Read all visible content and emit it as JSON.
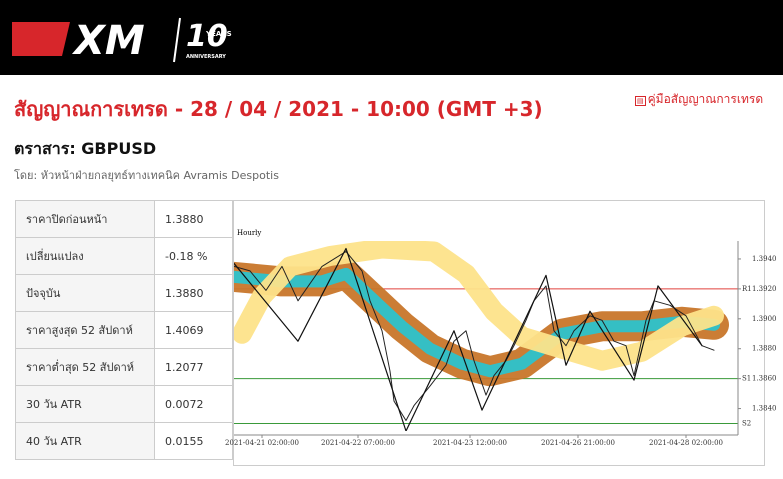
{
  "header": {
    "brand": "XM",
    "years": "10",
    "years_word": "YEARS",
    "anniversary": "ANNIVERSARY"
  },
  "page": {
    "title": "สัญญาณการเทรด - 28 / 04 / 2021 - 10:00 (GMT +3)",
    "guide_link": "คู่มือสัญญาณการเทรด",
    "instrument": "ตราสาร: GBPUSD",
    "author": "โดย: หัวหน้าฝ่ายกลยุทธ์ทางเทคนิค Avramis Despotis"
  },
  "table": {
    "rows": [
      [
        "ราคาปิดก่อนหน้า",
        "1.3880"
      ],
      [
        "เปลี่ยนแปลง",
        "-0.18 %"
      ],
      [
        "ปัจจุบัน",
        "1.3880"
      ],
      [
        "ราคาสูงสุด 52 สัปดาห์",
        "1.4069"
      ],
      [
        "ราคาต่ำสุด 52 สัปดาห์",
        "1.2077"
      ],
      [
        "30 วัน ATR",
        "0.0072"
      ],
      [
        "40 วัน ATR",
        "0.0155"
      ]
    ]
  },
  "chart_data": {
    "type": "line",
    "title": "Hourly",
    "xlim": [
      0,
      126
    ],
    "ylim": [
      1.3825,
      1.3952
    ],
    "xticks": [
      {
        "value": 7,
        "label": "2021-04-21 02:00:00"
      },
      {
        "value": 31,
        "label": "2021-04-22 07:00:00"
      },
      {
        "value": 59,
        "label": "2021-04-23 12:00:00"
      },
      {
        "value": 86,
        "label": "2021-04-26 21:00:00"
      },
      {
        "value": 113,
        "label": "2021-04-28 02:00:00"
      }
    ],
    "yticks": [
      {
        "value": 1.394,
        "label": "1.3940"
      },
      {
        "value": 1.392,
        "label": "1.3920"
      },
      {
        "value": 1.39,
        "label": "1.3900"
      },
      {
        "value": 1.388,
        "label": "1.3880"
      },
      {
        "value": 1.386,
        "label": "1.3860"
      },
      {
        "value": 1.384,
        "label": "1.3840"
      }
    ],
    "levels": [
      {
        "label": "R1",
        "value": 1.392,
        "color": "#e0403c"
      },
      {
        "label": "S1",
        "value": 1.386,
        "color": "#3a9a3a"
      },
      {
        "label": "S2",
        "value": 1.383,
        "color": "#3a9a3a"
      }
    ],
    "series": [
      {
        "color": "#c8762a",
        "x": [
          0,
          12,
          22,
          28,
          34,
          42,
          49,
          57,
          64,
          72,
          82,
          92,
          102,
          112,
          120
        ],
        "values": [
          1.3928,
          1.3925,
          1.3925,
          1.393,
          1.3915,
          1.3895,
          1.388,
          1.387,
          1.3865,
          1.387,
          1.389,
          1.3895,
          1.3895,
          1.3898,
          1.3896
        ]
      },
      {
        "color": "#2cc3cc",
        "x": [
          0,
          12,
          22,
          28,
          34,
          42,
          49,
          57,
          64,
          72,
          82,
          92,
          102,
          112,
          120
        ],
        "values": [
          1.3928,
          1.3925,
          1.3925,
          1.393,
          1.3915,
          1.3895,
          1.388,
          1.387,
          1.3865,
          1.387,
          1.389,
          1.3895,
          1.3895,
          1.3898,
          1.3896
        ]
      },
      {
        "color": "#fde38a",
        "x": [
          2,
          7,
          14,
          24,
          37,
          50,
          58,
          65,
          72,
          82,
          92,
          102,
          112,
          120
        ],
        "values": [
          1.389,
          1.3915,
          1.3935,
          1.3942,
          1.3947,
          1.3945,
          1.393,
          1.3905,
          1.3888,
          1.388,
          1.3872,
          1.3878,
          1.3895,
          1.3902
        ]
      },
      {
        "color": "#222222",
        "x": [
          0,
          4,
          8,
          12,
          16,
          22,
          28,
          32,
          34,
          37,
          39,
          40,
          43,
          45,
          49,
          53,
          55,
          58,
          60,
          63,
          65,
          68,
          70,
          73,
          75,
          78,
          80,
          83,
          85,
          89,
          92,
          95,
          98,
          100,
          103,
          105,
          109,
          113,
          117,
          120
        ],
        "values": [
          1.3935,
          1.3932,
          1.3919,
          1.3935,
          1.3912,
          1.3935,
          1.3945,
          1.3932,
          1.3912,
          1.3892,
          1.3865,
          1.3845,
          1.3832,
          1.3842,
          1.3855,
          1.3869,
          1.3885,
          1.3892,
          1.3872,
          1.3849,
          1.3862,
          1.3872,
          1.3882,
          1.3899,
          1.3912,
          1.3922,
          1.3892,
          1.3882,
          1.3892,
          1.3902,
          1.3899,
          1.3885,
          1.3882,
          1.3862,
          1.3899,
          1.3912,
          1.3909,
          1.3902,
          1.3882,
          1.3879
        ]
      },
      {
        "color": "#111111",
        "x": [
          0,
          16,
          28,
          43,
          55,
          62,
          78,
          83,
          89,
          100,
          106,
          117
        ],
        "values": [
          1.3937,
          1.3885,
          1.3947,
          1.3825,
          1.3892,
          1.3839,
          1.3929,
          1.3869,
          1.3905,
          1.3859,
          1.3922,
          1.3882
        ]
      }
    ]
  }
}
